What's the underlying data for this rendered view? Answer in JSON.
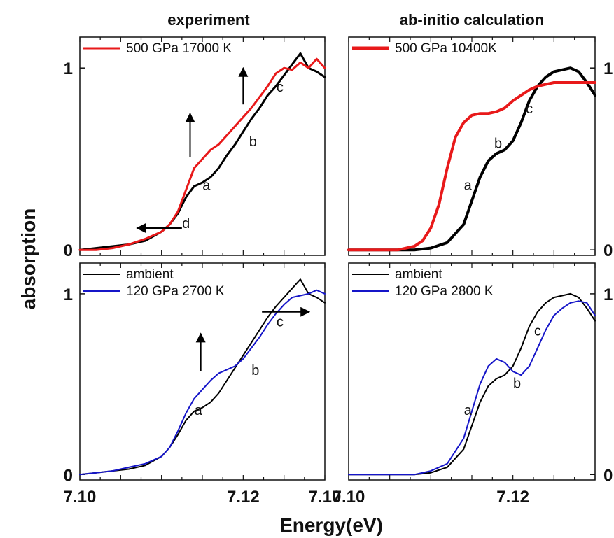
{
  "figure": {
    "xlabel": "Energy(eV)",
    "ylabel": "absorption",
    "column_titles": [
      "experiment",
      "ab-initio calculation"
    ]
  },
  "chart_data": [
    {
      "type": "line",
      "title": "experiment",
      "xlim": [
        7.1,
        7.13
      ],
      "ylim": [
        -0.03,
        1.17
      ],
      "xticks": [
        "7.10",
        "7.12",
        "7.10"
      ],
      "yticks": [
        "0",
        "1"
      ],
      "ytick_side": "left",
      "series": [
        {
          "name": "",
          "color": "#000000",
          "x": [
            7.1,
            7.102,
            7.104,
            7.106,
            7.108,
            7.11,
            7.111,
            7.112,
            7.113,
            7.114,
            7.115,
            7.116,
            7.117,
            7.118,
            7.119,
            7.12,
            7.121,
            7.122,
            7.123,
            7.124,
            7.125,
            7.126,
            7.127,
            7.128,
            7.129,
            7.13
          ],
          "y": [
            0,
            0.01,
            0.02,
            0.03,
            0.05,
            0.1,
            0.14,
            0.2,
            0.29,
            0.35,
            0.37,
            0.4,
            0.45,
            0.52,
            0.58,
            0.65,
            0.72,
            0.78,
            0.85,
            0.9,
            0.96,
            1.02,
            1.08,
            1.0,
            0.98,
            0.95
          ]
        },
        {
          "name": "500 GPa 17000 K",
          "color": "#e8191a",
          "x": [
            7.1,
            7.102,
            7.104,
            7.106,
            7.108,
            7.11,
            7.111,
            7.112,
            7.113,
            7.114,
            7.115,
            7.116,
            7.117,
            7.118,
            7.119,
            7.12,
            7.121,
            7.122,
            7.123,
            7.124,
            7.125,
            7.126,
            7.127,
            7.128,
            7.129,
            7.13
          ],
          "y": [
            0,
            0,
            0.01,
            0.03,
            0.06,
            0.1,
            0.14,
            0.21,
            0.33,
            0.45,
            0.5,
            0.55,
            0.58,
            0.63,
            0.68,
            0.73,
            0.78,
            0.84,
            0.9,
            0.97,
            1.0,
            0.99,
            1.03,
            1.0,
            1.05,
            1.0
          ]
        }
      ],
      "annotations": [
        {
          "text": "a",
          "x": 7.1155,
          "y": 0.33
        },
        {
          "text": "b",
          "x": 7.1212,
          "y": 0.57
        },
        {
          "text": "c",
          "x": 7.1245,
          "y": 0.87
        },
        {
          "text": "d",
          "x": 7.113,
          "y": 0.12
        }
      ],
      "arrows": [
        {
          "x1": 7.1135,
          "y1": 0.51,
          "x2": 7.1135,
          "y2": 0.75
        },
        {
          "x1": 7.12,
          "y1": 0.8,
          "x2": 7.12,
          "y2": 1.0
        },
        {
          "x1": 7.1125,
          "y1": 0.12,
          "x2": 7.107,
          "y2": 0.12
        }
      ],
      "legend": "top-left"
    },
    {
      "type": "line",
      "title": "ab-initio calculation",
      "xlim": [
        7.1,
        7.13
      ],
      "ylim": [
        -0.03,
        1.17
      ],
      "xticks": [
        "7.10",
        "7.12"
      ],
      "yticks": [
        "0",
        "1"
      ],
      "ytick_side": "right",
      "series": [
        {
          "name": "",
          "color": "#000000",
          "x": [
            7.1,
            7.104,
            7.108,
            7.11,
            7.112,
            7.114,
            7.115,
            7.116,
            7.117,
            7.118,
            7.119,
            7.12,
            7.121,
            7.122,
            7.123,
            7.124,
            7.125,
            7.126,
            7.127,
            7.128,
            7.129,
            7.13
          ],
          "y": [
            0,
            0,
            0,
            0.01,
            0.04,
            0.14,
            0.27,
            0.4,
            0.49,
            0.53,
            0.55,
            0.6,
            0.7,
            0.82,
            0.9,
            0.95,
            0.98,
            0.99,
            1.0,
            0.98,
            0.92,
            0.85
          ]
        },
        {
          "name": "500 GPa 10400K",
          "color": "#e8191a",
          "x": [
            7.1,
            7.104,
            7.106,
            7.108,
            7.109,
            7.11,
            7.111,
            7.112,
            7.113,
            7.114,
            7.115,
            7.116,
            7.117,
            7.118,
            7.119,
            7.12,
            7.121,
            7.122,
            7.123,
            7.124,
            7.125,
            7.126,
            7.127,
            7.128,
            7.129,
            7.13
          ],
          "y": [
            0,
            0,
            0,
            0.02,
            0.05,
            0.12,
            0.25,
            0.45,
            0.62,
            0.7,
            0.74,
            0.75,
            0.75,
            0.76,
            0.78,
            0.82,
            0.85,
            0.88,
            0.9,
            0.91,
            0.92,
            0.92,
            0.92,
            0.92,
            0.92,
            0.92
          ]
        }
      ],
      "annotations": [
        {
          "text": "a",
          "x": 7.1145,
          "y": 0.33
        },
        {
          "text": "b",
          "x": 7.1182,
          "y": 0.56
        },
        {
          "text": "c",
          "x": 7.122,
          "y": 0.75
        }
      ],
      "arrows": [],
      "legend": "top-left"
    },
    {
      "type": "line",
      "title": "",
      "xlim": [
        7.1,
        7.13
      ],
      "ylim": [
        -0.03,
        1.17
      ],
      "xticks": [
        "7.10",
        "7.12",
        "7.10"
      ],
      "yticks": [
        "0",
        "1"
      ],
      "ytick_side": "left",
      "series": [
        {
          "name": "ambient",
          "color": "#000000",
          "x": [
            7.1,
            7.102,
            7.104,
            7.106,
            7.108,
            7.11,
            7.111,
            7.112,
            7.113,
            7.114,
            7.115,
            7.116,
            7.117,
            7.118,
            7.119,
            7.12,
            7.121,
            7.122,
            7.123,
            7.124,
            7.125,
            7.126,
            7.127,
            7.128,
            7.129,
            7.13
          ],
          "y": [
            0,
            0.01,
            0.02,
            0.03,
            0.05,
            0.1,
            0.15,
            0.22,
            0.3,
            0.35,
            0.37,
            0.4,
            0.45,
            0.52,
            0.59,
            0.66,
            0.73,
            0.8,
            0.87,
            0.93,
            0.98,
            1.03,
            1.08,
            1.0,
            0.98,
            0.95
          ]
        },
        {
          "name": "120 GPa 2700 K",
          "color": "#1515c8",
          "x": [
            7.1,
            7.102,
            7.104,
            7.106,
            7.108,
            7.11,
            7.111,
            7.112,
            7.113,
            7.114,
            7.115,
            7.116,
            7.117,
            7.118,
            7.119,
            7.12,
            7.121,
            7.122,
            7.123,
            7.124,
            7.125,
            7.126,
            7.127,
            7.128,
            7.129,
            7.13
          ],
          "y": [
            0,
            0.01,
            0.02,
            0.04,
            0.06,
            0.1,
            0.15,
            0.24,
            0.34,
            0.42,
            0.47,
            0.52,
            0.56,
            0.58,
            0.6,
            0.64,
            0.7,
            0.76,
            0.83,
            0.89,
            0.94,
            0.98,
            0.99,
            1.0,
            1.02,
            1.0
          ]
        }
      ],
      "annotations": [
        {
          "text": "a",
          "x": 7.1145,
          "y": 0.33
        },
        {
          "text": "b",
          "x": 7.1215,
          "y": 0.55
        },
        {
          "text": "c",
          "x": 7.1245,
          "y": 0.82
        }
      ],
      "arrows": [
        {
          "x1": 7.1148,
          "y1": 0.57,
          "x2": 7.1148,
          "y2": 0.78
        },
        {
          "x1": 7.1223,
          "y1": 0.9,
          "x2": 7.1281,
          "y2": 0.9
        }
      ],
      "legend": "top-left"
    },
    {
      "type": "line",
      "title": "",
      "xlim": [
        7.1,
        7.13
      ],
      "ylim": [
        -0.03,
        1.17
      ],
      "xticks": [
        "7.10",
        "7.12"
      ],
      "yticks": [
        "0",
        "1"
      ],
      "ytick_side": "right",
      "series": [
        {
          "name": "ambient",
          "color": "#000000",
          "x": [
            7.1,
            7.104,
            7.108,
            7.11,
            7.112,
            7.114,
            7.115,
            7.116,
            7.117,
            7.118,
            7.119,
            7.12,
            7.121,
            7.122,
            7.123,
            7.124,
            7.125,
            7.126,
            7.127,
            7.128,
            7.129,
            7.13
          ],
          "y": [
            0,
            0,
            0,
            0.01,
            0.04,
            0.14,
            0.27,
            0.4,
            0.49,
            0.53,
            0.55,
            0.6,
            0.7,
            0.82,
            0.9,
            0.95,
            0.98,
            0.99,
            1.0,
            0.98,
            0.92,
            0.85
          ]
        },
        {
          "name": "120 GPa 2800 K",
          "color": "#1515c8",
          "x": [
            7.1,
            7.104,
            7.108,
            7.11,
            7.112,
            7.114,
            7.115,
            7.116,
            7.117,
            7.118,
            7.119,
            7.12,
            7.121,
            7.122,
            7.123,
            7.124,
            7.125,
            7.126,
            7.127,
            7.128,
            7.129,
            7.13
          ],
          "y": [
            0,
            0,
            0,
            0.02,
            0.06,
            0.2,
            0.35,
            0.5,
            0.6,
            0.64,
            0.62,
            0.57,
            0.55,
            0.6,
            0.7,
            0.8,
            0.88,
            0.92,
            0.95,
            0.96,
            0.95,
            0.88
          ]
        }
      ],
      "annotations": [
        {
          "text": "a",
          "x": 7.1145,
          "y": 0.33
        },
        {
          "text": "b",
          "x": 7.1205,
          "y": 0.48
        },
        {
          "text": "c",
          "x": 7.123,
          "y": 0.77
        }
      ],
      "arrows": [],
      "legend": "top-left"
    }
  ]
}
